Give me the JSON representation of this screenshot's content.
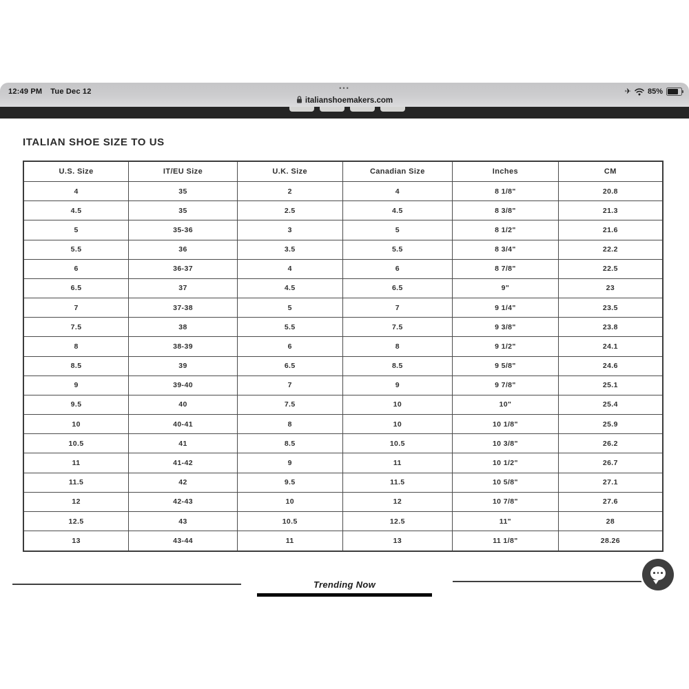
{
  "status_bar": {
    "time": "12:49 PM",
    "date": "Tue Dec 12",
    "tab_dots": "•••",
    "url": "italianshoemakers.com",
    "battery_percent": "85%",
    "airplane_glyph": "✈"
  },
  "page": {
    "title": "ITALIAN SHOE SIZE TO US",
    "trending_label": "Trending Now"
  },
  "colors": {
    "dark_band": "#252525",
    "fab": "#3e3e3e",
    "line": "#3f3f3f"
  },
  "chart_data": {
    "type": "table",
    "title": "ITALIAN SHOE SIZE TO US",
    "headers": [
      "U.S. Size",
      "IT/EU Size",
      "U.K. Size",
      "Canadian Size",
      "Inches",
      "CM"
    ],
    "rows": [
      [
        "4",
        "35",
        "2",
        "4",
        "8 1/8\"",
        "20.8"
      ],
      [
        "4.5",
        "35",
        "2.5",
        "4.5",
        "8 3/8\"",
        "21.3"
      ],
      [
        "5",
        "35-36",
        "3",
        "5",
        "8 1/2\"",
        "21.6"
      ],
      [
        "5.5",
        "36",
        "3.5",
        "5.5",
        "8 3/4\"",
        "22.2"
      ],
      [
        "6",
        "36-37",
        "4",
        "6",
        "8 7/8\"",
        "22.5"
      ],
      [
        "6.5",
        "37",
        "4.5",
        "6.5",
        "9\"",
        "23"
      ],
      [
        "7",
        "37-38",
        "5",
        "7",
        "9 1/4\"",
        "23.5"
      ],
      [
        "7.5",
        "38",
        "5.5",
        "7.5",
        "9 3/8\"",
        "23.8"
      ],
      [
        "8",
        "38-39",
        "6",
        "8",
        "9 1/2\"",
        "24.1"
      ],
      [
        "8.5",
        "39",
        "6.5",
        "8.5",
        "9 5/8\"",
        "24.6"
      ],
      [
        "9",
        "39-40",
        "7",
        "9",
        "9 7/8\"",
        "25.1"
      ],
      [
        "9.5",
        "40",
        "7.5",
        "10",
        "10\"",
        "25.4"
      ],
      [
        "10",
        "40-41",
        "8",
        "10",
        "10 1/8\"",
        "25.9"
      ],
      [
        "10.5",
        "41",
        "8.5",
        "10.5",
        "10 3/8\"",
        "26.2"
      ],
      [
        "11",
        "41-42",
        "9",
        "11",
        "10 1/2\"",
        "26.7"
      ],
      [
        "11.5",
        "42",
        "9.5",
        "11.5",
        "10 5/8\"",
        "27.1"
      ],
      [
        "12",
        "42-43",
        "10",
        "12",
        "10 7/8\"",
        "27.6"
      ],
      [
        "12.5",
        "43",
        "10.5",
        "12.5",
        "11\"",
        "28"
      ],
      [
        "13",
        "43-44",
        "11",
        "13",
        "11 1/8\"",
        "28.26"
      ]
    ]
  }
}
